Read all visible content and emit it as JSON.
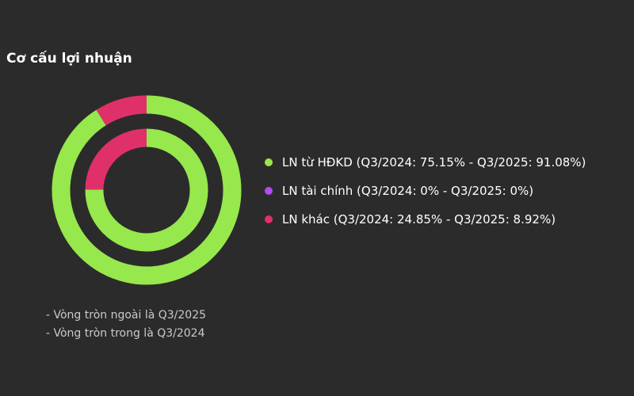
{
  "title": "Cơ cấu lợi nhuận",
  "chart_data": {
    "type": "donut",
    "rings": [
      {
        "name": "Q3/2025",
        "position": "outer",
        "values": [
          91.08,
          0,
          8.92
        ]
      },
      {
        "name": "Q3/2024",
        "position": "inner",
        "values": [
          75.15,
          0,
          24.85
        ]
      }
    ],
    "categories": [
      "LN từ HĐKD",
      "LN tài chính",
      "LN khác"
    ],
    "colors": [
      "#96e84c",
      "#b24bf3",
      "#e0306a"
    ]
  },
  "legend": [
    {
      "label": "LN từ HĐKD (Q3/2024: 75.15% - Q3/2025: 91.08%)",
      "color": "#96e84c"
    },
    {
      "label": "LN tài chính (Q3/2024: 0% - Q3/2025: 0%)",
      "color": "#b24bf3"
    },
    {
      "label": "LN khác (Q3/2024: 24.85% - Q3/2025: 8.92%)",
      "color": "#e0306a"
    }
  ],
  "notes": [
    "- Vòng tròn ngoài là Q3/2025",
    "- Vòng tròn trong là Q3/2024"
  ]
}
